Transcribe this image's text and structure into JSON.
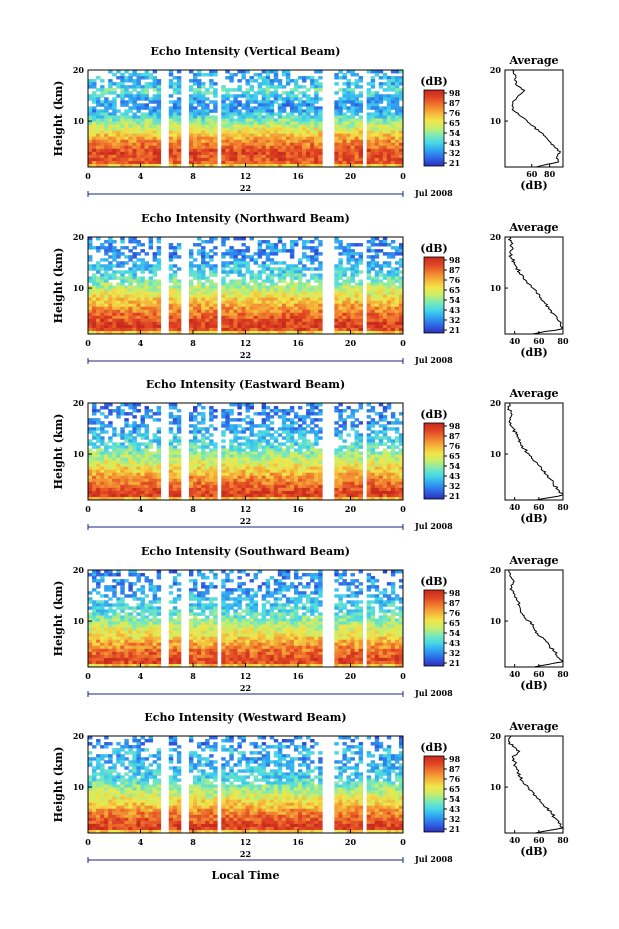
{
  "colors": {
    "colorbar_stops": [
      "#2d2fb8",
      "#2f64e6",
      "#2fa0f0",
      "#45d6e8",
      "#7ae8b8",
      "#c8ee6a",
      "#f2e54a",
      "#f5b23a",
      "#f07a2e",
      "#e04424",
      "#c82a1c"
    ],
    "line": "#000000",
    "accent": "#1a237e"
  },
  "chart_data": [
    {
      "type": "heatmap",
      "title": "Echo Intensity (Vertical Beam)",
      "xlabel": "",
      "ylabel": "Height (km)",
      "x_ticks": [
        "0",
        "4",
        "8",
        "12",
        "16",
        "20",
        "0"
      ],
      "y_ticks": [
        "20",
        "10"
      ],
      "ylim": [
        1,
        20
      ],
      "date_marker": "22",
      "month_label": "Jul 2008",
      "gaps_hours": [
        [
          5.6,
          6.0
        ],
        [
          7.0,
          7.6
        ],
        [
          10.0,
          10.3
        ],
        [
          18.0,
          18.7
        ],
        [
          20.8,
          21.2
        ]
      ],
      "colorbar": {
        "unit": "(dB)",
        "ticks": [
          "98",
          "87",
          "76",
          "65",
          "54",
          "43",
          "32",
          "21"
        ]
      },
      "profile": {
        "title": "Average",
        "xlabel": "(dB)",
        "x_ticks": [
          "60",
          "80"
        ],
        "y_ticks": [
          "20",
          "10"
        ],
        "xlim": [
          30,
          95
        ],
        "heights": [
          1,
          2,
          3,
          4,
          5,
          6,
          7,
          8,
          9,
          10,
          11,
          12,
          13,
          14,
          15,
          16,
          17,
          18,
          19,
          20
        ],
        "values": [
          65,
          90,
          88,
          92,
          85,
          80,
          75,
          68,
          62,
          55,
          47,
          40,
          38,
          40,
          45,
          52,
          43,
          41,
          42,
          38
        ]
      }
    },
    {
      "type": "heatmap",
      "title": "Echo Intensity (Northward Beam)",
      "xlabel": "",
      "ylabel": "Height (km)",
      "x_ticks": [
        "0",
        "4",
        "8",
        "12",
        "16",
        "20",
        "0"
      ],
      "y_ticks": [
        "20",
        "10"
      ],
      "ylim": [
        1,
        20
      ],
      "date_marker": "22",
      "month_label": "Jul 2008",
      "gaps_hours": [
        [
          5.6,
          6.0
        ],
        [
          7.0,
          7.6
        ],
        [
          10.0,
          10.3
        ],
        [
          18.0,
          18.7
        ],
        [
          20.8,
          21.2
        ]
      ],
      "colorbar": {
        "unit": "(dB)",
        "ticks": [
          "98",
          "87",
          "76",
          "65",
          "54",
          "43",
          "32",
          "21"
        ]
      },
      "profile": {
        "title": "Average",
        "xlabel": "(dB)",
        "x_ticks": [
          "40",
          "60",
          "80"
        ],
        "y_ticks": [
          "20",
          "10"
        ],
        "xlim": [
          32,
          80
        ],
        "heights": [
          1,
          2,
          3,
          4,
          5,
          6,
          7,
          8,
          9,
          10,
          11,
          12,
          13,
          14,
          15,
          16,
          17,
          18,
          19,
          20
        ],
        "values": [
          55,
          79,
          78,
          75,
          72,
          68,
          65,
          62,
          58,
          55,
          50,
          47,
          44,
          42,
          40,
          37,
          36,
          38,
          37,
          36
        ]
      }
    },
    {
      "type": "heatmap",
      "title": "Echo Intensity (Eastward Beam)",
      "xlabel": "",
      "ylabel": "Height (km)",
      "x_ticks": [
        "0",
        "4",
        "8",
        "12",
        "16",
        "20",
        "0"
      ],
      "y_ticks": [
        "20",
        "10"
      ],
      "ylim": [
        1,
        20
      ],
      "date_marker": "22",
      "month_label": "Jul 2008",
      "gaps_hours": [
        [
          5.6,
          6.0
        ],
        [
          7.0,
          7.6
        ],
        [
          10.0,
          10.3
        ],
        [
          18.0,
          18.7
        ],
        [
          20.8,
          21.2
        ]
      ],
      "colorbar": {
        "unit": "(dB)",
        "ticks": [
          "98",
          "87",
          "76",
          "65",
          "54",
          "43",
          "32",
          "21"
        ]
      },
      "profile": {
        "title": "Average",
        "xlabel": "(dB)",
        "x_ticks": [
          "40",
          "60",
          "80"
        ],
        "y_ticks": [
          "20",
          "10"
        ],
        "xlim": [
          32,
          80
        ],
        "heights": [
          1,
          2,
          3,
          4,
          5,
          6,
          7,
          8,
          9,
          10,
          11,
          12,
          13,
          14,
          15,
          16,
          17,
          18,
          19,
          20
        ],
        "values": [
          58,
          80,
          76,
          72,
          70,
          66,
          62,
          59,
          55,
          52,
          48,
          45,
          43,
          41,
          39,
          37,
          36,
          37,
          35,
          36
        ]
      }
    },
    {
      "type": "heatmap",
      "title": "Echo Intensity (Southward Beam)",
      "xlabel": "",
      "ylabel": "Height (km)",
      "x_ticks": [
        "0",
        "4",
        "8",
        "12",
        "16",
        "20",
        "0"
      ],
      "y_ticks": [
        "20",
        "10"
      ],
      "ylim": [
        1,
        20
      ],
      "date_marker": "22",
      "month_label": "Jul 2008",
      "gaps_hours": [
        [
          5.6,
          6.0
        ],
        [
          7.0,
          7.6
        ],
        [
          10.0,
          10.3
        ],
        [
          18.0,
          18.7
        ],
        [
          20.8,
          21.2
        ]
      ],
      "colorbar": {
        "unit": "(dB)",
        "ticks": [
          "98",
          "87",
          "76",
          "65",
          "54",
          "43",
          "32",
          "21"
        ]
      },
      "profile": {
        "title": "Average",
        "xlabel": "(dB)",
        "x_ticks": [
          "40",
          "60",
          "80"
        ],
        "y_ticks": [
          "20",
          "10"
        ],
        "xlim": [
          32,
          80
        ],
        "heights": [
          1,
          2,
          3,
          4,
          5,
          6,
          7,
          8,
          9,
          10,
          11,
          12,
          13,
          14,
          15,
          16,
          17,
          18,
          19,
          20
        ],
        "values": [
          56,
          79,
          75,
          73,
          69,
          66,
          61,
          58,
          55,
          52,
          48,
          45,
          44,
          42,
          40,
          38,
          37,
          39,
          36,
          35
        ]
      }
    },
    {
      "type": "heatmap",
      "title": "Echo Intensity (Westward Beam)",
      "xlabel": "Local Time",
      "ylabel": "Height (km)",
      "x_ticks": [
        "0",
        "4",
        "8",
        "12",
        "16",
        "20",
        "0"
      ],
      "y_ticks": [
        "20",
        "10"
      ],
      "ylim": [
        1,
        20
      ],
      "date_marker": "22",
      "month_label": "Jul 2008",
      "gaps_hours": [
        [
          5.6,
          6.0
        ],
        [
          7.0,
          7.6
        ],
        [
          10.0,
          10.3
        ],
        [
          18.0,
          18.7
        ],
        [
          20.8,
          21.2
        ]
      ],
      "colorbar": {
        "unit": "(dB)",
        "ticks": [
          "98",
          "87",
          "76",
          "65",
          "54",
          "43",
          "32",
          "21"
        ]
      },
      "profile": {
        "title": "Average",
        "xlabel": "(dB)",
        "x_ticks": [
          "40",
          "60",
          "80"
        ],
        "y_ticks": [
          "20",
          "10"
        ],
        "xlim": [
          32,
          80
        ],
        "heights": [
          1,
          2,
          3,
          4,
          5,
          6,
          7,
          8,
          9,
          10,
          11,
          12,
          13,
          14,
          15,
          16,
          17,
          18,
          19,
          20
        ],
        "values": [
          57,
          80,
          76,
          73,
          70,
          66,
          62,
          58,
          55,
          51,
          47,
          44,
          43,
          41,
          40,
          38,
          44,
          38,
          35,
          37
        ]
      }
    }
  ]
}
